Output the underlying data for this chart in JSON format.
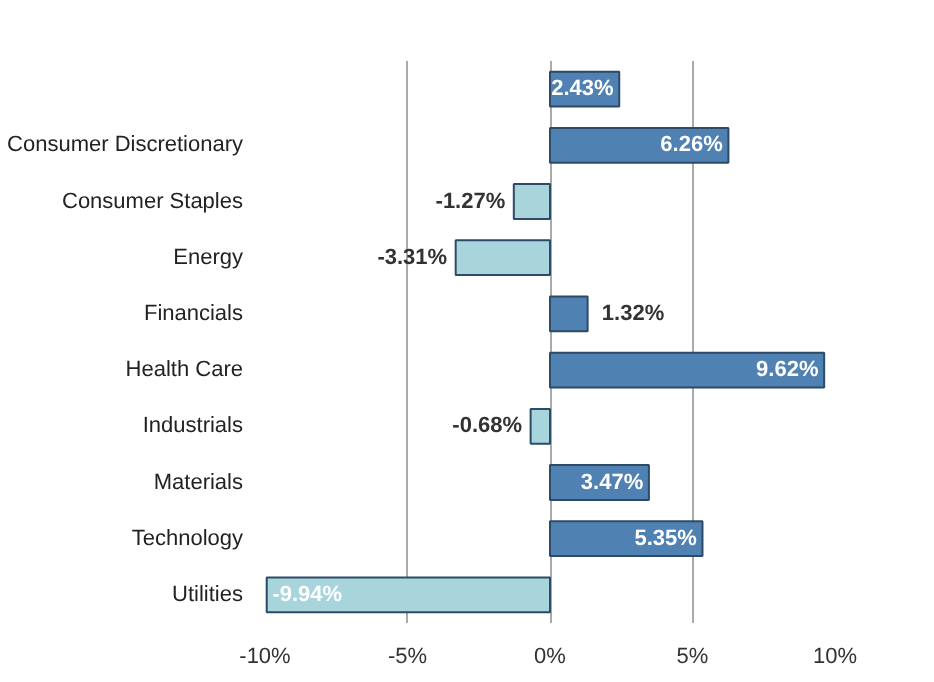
{
  "chart_data": {
    "type": "bar",
    "orientation": "horizontal",
    "categories": [
      null,
      "Consumer Discretionary",
      "Consumer Staples",
      "Energy",
      "Financials",
      "Health Care",
      "Industrials",
      "Materials",
      "Technology",
      "Utilities"
    ],
    "values": [
      2.43,
      6.26,
      -1.27,
      -3.31,
      1.32,
      9.62,
      -0.68,
      3.47,
      5.35,
      -9.94
    ],
    "value_labels": [
      "2.43%",
      "6.26%",
      "-1.27%",
      "-3.31%",
      "1.32%",
      "9.62%",
      "-0.68%",
      "3.47%",
      "5.35%",
      "-9.94%"
    ],
    "colors": [
      "#4f81b3",
      "#4f81b3",
      "#a8d5dc",
      "#a8d5dc",
      "#4f81b3",
      "#4f81b3",
      "#a8d5dc",
      "#4f81b3",
      "#4f81b3",
      "#a8d5dc"
    ],
    "xlim": [
      -10,
      10
    ],
    "xticks": [
      {
        "value": -10,
        "label": "-10%"
      },
      {
        "value": -5,
        "label": "-5%"
      },
      {
        "value": 0,
        "label": "0%"
      },
      {
        "value": 5,
        "label": "5%"
      },
      {
        "value": 10,
        "label": "10%"
      }
    ],
    "grid": "x"
  }
}
